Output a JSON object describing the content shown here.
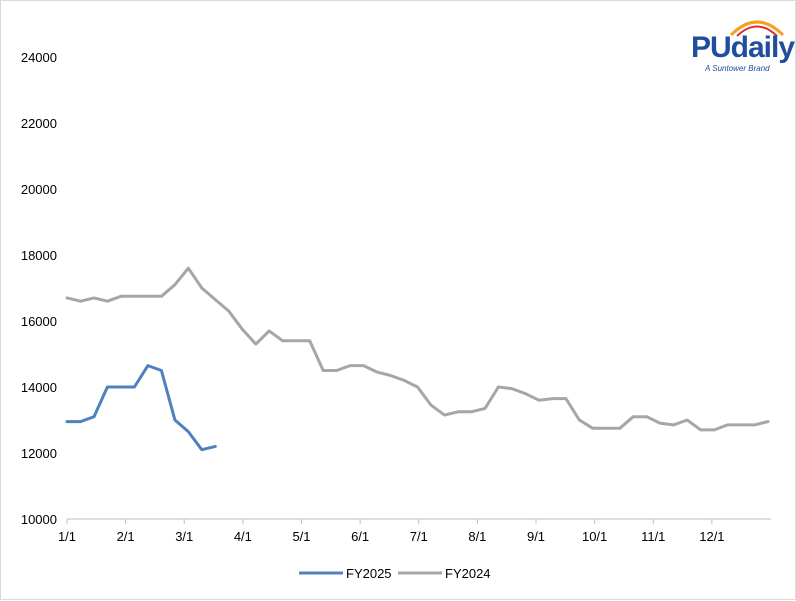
{
  "logo": {
    "name": "PUdaily",
    "tagline": "A Suntower Brand",
    "colors": {
      "text": "#1f4e9c",
      "arc_outer": "#f4a020",
      "arc_inner": "#e0302a"
    }
  },
  "chart_data": {
    "type": "line",
    "title": "",
    "xlabel": "",
    "ylabel": "",
    "ylim": [
      10000,
      25000
    ],
    "yticks": [
      10000,
      12000,
      14000,
      16000,
      18000,
      20000,
      22000,
      24000
    ],
    "x_tick_labels": [
      "1/1",
      "2/1",
      "3/1",
      "4/1",
      "5/1",
      "6/1",
      "7/1",
      "8/1",
      "9/1",
      "10/1",
      "11/1",
      "12/1"
    ],
    "x_unit": "week",
    "grid": false,
    "legend_position": "bottom",
    "series": [
      {
        "name": "FY2025",
        "color": "#4f81bd",
        "values": [
          12950,
          12950,
          13100,
          14000,
          14000,
          14000,
          14650,
          14500,
          13000,
          12650,
          12100,
          12200
        ]
      },
      {
        "name": "FY2024",
        "color": "#a6a6a6",
        "values": [
          16700,
          16600,
          16700,
          16600,
          16750,
          16750,
          16750,
          16750,
          17100,
          17600,
          17000,
          16650,
          16300,
          15750,
          15300,
          15700,
          15400,
          15400,
          15400,
          14500,
          14500,
          14650,
          14650,
          14450,
          14350,
          14200,
          14000,
          13450,
          13150,
          13250,
          13250,
          13350,
          14000,
          13950,
          13800,
          13600,
          13650,
          13650,
          13000,
          12750,
          12750,
          12750,
          13100,
          13100,
          12900,
          12850,
          13000,
          12700,
          12700,
          12850,
          12850,
          12850,
          12950
        ]
      }
    ]
  }
}
